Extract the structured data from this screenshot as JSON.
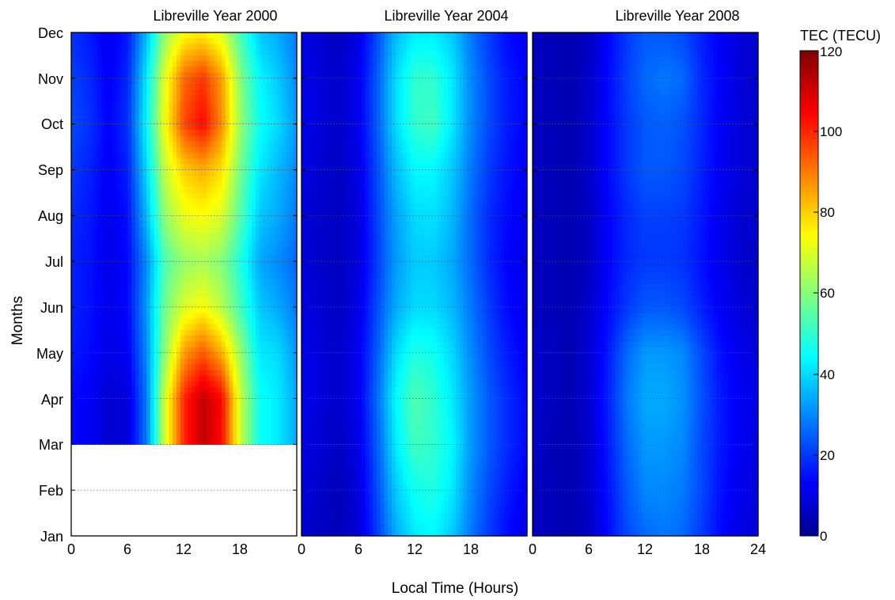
{
  "chart_data": [
    {
      "type": "heatmap",
      "title": "Libreville Year 2000",
      "xlim": [
        0,
        24
      ],
      "x_ticks": [
        "0",
        "6",
        "12",
        "18"
      ],
      "months": [
        "Jan",
        "Feb",
        "Mar",
        "Apr",
        "May",
        "Jun",
        "Jul",
        "Aug",
        "Sep",
        "Oct",
        "Nov",
        "Dec"
      ],
      "hours": [
        0,
        2,
        4,
        6,
        8,
        10,
        12,
        14,
        16,
        18,
        20,
        22,
        24
      ],
      "data_start_month": "Apr",
      "values": [
        null,
        null,
        null,
        [
          14,
          12,
          8,
          9,
          28,
          70,
          100,
          112,
          104,
          68,
          46,
          42,
          34
        ],
        [
          16,
          14,
          10,
          12,
          30,
          62,
          86,
          94,
          84,
          62,
          42,
          40,
          32
        ],
        [
          17,
          15,
          11,
          14,
          32,
          58,
          70,
          74,
          66,
          52,
          38,
          34,
          28
        ],
        [
          17,
          15,
          10,
          14,
          30,
          54,
          62,
          64,
          60,
          48,
          34,
          30,
          26
        ],
        [
          18,
          16,
          11,
          15,
          36,
          62,
          72,
          74,
          70,
          54,
          38,
          34,
          28
        ],
        [
          20,
          17,
          12,
          17,
          40,
          68,
          80,
          84,
          78,
          58,
          42,
          36,
          30
        ],
        [
          22,
          19,
          13,
          19,
          44,
          74,
          96,
          104,
          88,
          62,
          46,
          40,
          32
        ],
        [
          21,
          18,
          12,
          18,
          42,
          72,
          92,
          98,
          86,
          60,
          44,
          38,
          30
        ],
        [
          19,
          16,
          11,
          16,
          36,
          62,
          74,
          76,
          70,
          52,
          38,
          34,
          28
        ]
      ]
    },
    {
      "type": "heatmap",
      "title": "Libreville Year 2004",
      "xlim": [
        0,
        24
      ],
      "x_ticks": [
        "0",
        "6",
        "12",
        "18"
      ],
      "months": [
        "Jan",
        "Feb",
        "Mar",
        "Apr",
        "May",
        "Jun",
        "Jul",
        "Aug",
        "Sep",
        "Oct",
        "Nov",
        "Dec"
      ],
      "hours": [
        0,
        2,
        4,
        6,
        8,
        10,
        12,
        14,
        16,
        18,
        20,
        22,
        24
      ],
      "values": [
        [
          8,
          6,
          5,
          8,
          20,
          34,
          42,
          44,
          38,
          28,
          20,
          14,
          10
        ],
        [
          9,
          7,
          5,
          9,
          22,
          38,
          46,
          48,
          42,
          30,
          22,
          16,
          12
        ],
        [
          10,
          8,
          6,
          10,
          24,
          42,
          52,
          50,
          44,
          32,
          24,
          18,
          14
        ],
        [
          11,
          9,
          7,
          11,
          26,
          44,
          54,
          50,
          42,
          32,
          24,
          18,
          14
        ],
        [
          11,
          9,
          7,
          11,
          24,
          40,
          48,
          46,
          40,
          30,
          22,
          16,
          12
        ],
        [
          10,
          8,
          6,
          10,
          22,
          34,
          40,
          40,
          36,
          28,
          20,
          14,
          11
        ],
        [
          9,
          7,
          6,
          9,
          20,
          32,
          38,
          38,
          34,
          26,
          18,
          13,
          10
        ],
        [
          9,
          7,
          6,
          9,
          21,
          33,
          40,
          41,
          36,
          26,
          18,
          14,
          11
        ],
        [
          10,
          8,
          6,
          10,
          22,
          36,
          44,
          44,
          38,
          28,
          20,
          15,
          12
        ],
        [
          11,
          9,
          7,
          11,
          24,
          40,
          50,
          52,
          42,
          30,
          22,
          16,
          13
        ],
        [
          11,
          9,
          7,
          11,
          24,
          40,
          50,
          50,
          42,
          30,
          22,
          16,
          13
        ],
        [
          10,
          8,
          6,
          10,
          22,
          36,
          42,
          42,
          38,
          28,
          20,
          14,
          12
        ]
      ]
    },
    {
      "type": "heatmap",
      "title": "Libreville Year 2008",
      "xlim": [
        0,
        24
      ],
      "x_ticks": [
        "0",
        "6",
        "12",
        "18",
        "24"
      ],
      "months": [
        "Jan",
        "Feb",
        "Mar",
        "Apr",
        "May",
        "Jun",
        "Jul",
        "Aug",
        "Sep",
        "Oct",
        "Nov",
        "Dec"
      ],
      "hours": [
        0,
        2,
        4,
        6,
        8,
        10,
        12,
        14,
        16,
        18,
        20,
        22,
        24
      ],
      "values": [
        [
          6,
          5,
          4,
          6,
          14,
          22,
          26,
          28,
          26,
          20,
          14,
          10,
          8
        ],
        [
          6,
          5,
          4,
          7,
          15,
          24,
          30,
          30,
          28,
          22,
          15,
          11,
          9
        ],
        [
          7,
          5,
          4,
          7,
          16,
          26,
          32,
          32,
          30,
          22,
          16,
          12,
          9
        ],
        [
          7,
          6,
          4,
          8,
          17,
          28,
          34,
          34,
          31,
          23,
          16,
          12,
          10
        ],
        [
          7,
          6,
          4,
          8,
          16,
          26,
          32,
          32,
          30,
          22,
          15,
          11,
          9
        ],
        [
          6,
          5,
          4,
          7,
          14,
          20,
          24,
          24,
          22,
          17,
          12,
          9,
          7
        ],
        [
          6,
          5,
          4,
          6,
          13,
          18,
          20,
          20,
          19,
          15,
          11,
          8,
          6
        ],
        [
          6,
          5,
          4,
          6,
          13,
          18,
          21,
          21,
          20,
          16,
          11,
          8,
          7
        ],
        [
          6,
          5,
          4,
          7,
          14,
          20,
          24,
          24,
          22,
          17,
          12,
          9,
          7
        ],
        [
          6,
          5,
          4,
          7,
          14,
          20,
          24,
          25,
          23,
          18,
          12,
          9,
          7
        ],
        [
          6,
          5,
          4,
          7,
          14,
          21,
          26,
          28,
          26,
          18,
          13,
          9,
          7
        ],
        [
          6,
          5,
          4,
          6,
          13,
          20,
          24,
          24,
          22,
          17,
          12,
          9,
          7
        ]
      ]
    }
  ],
  "y_axis": {
    "label": "Months",
    "ticks": [
      "Dec",
      "Nov",
      "Oct",
      "Sep",
      "Aug",
      "Jul",
      "Jun",
      "May",
      "Apr",
      "Mar",
      "Feb",
      "Jan"
    ]
  },
  "x_axis": {
    "label": "Local Time (Hours)"
  },
  "colorbar": {
    "label": "TEC (TECU)",
    "range": [
      0,
      120
    ],
    "ticks": [
      "120",
      "100",
      "80",
      "60",
      "40",
      "20",
      "0"
    ],
    "colormap": "jet",
    "colors": [
      "#00008f",
      "#0000ff",
      "#00ffff",
      "#ffff00",
      "#ff0000",
      "#800000"
    ]
  }
}
